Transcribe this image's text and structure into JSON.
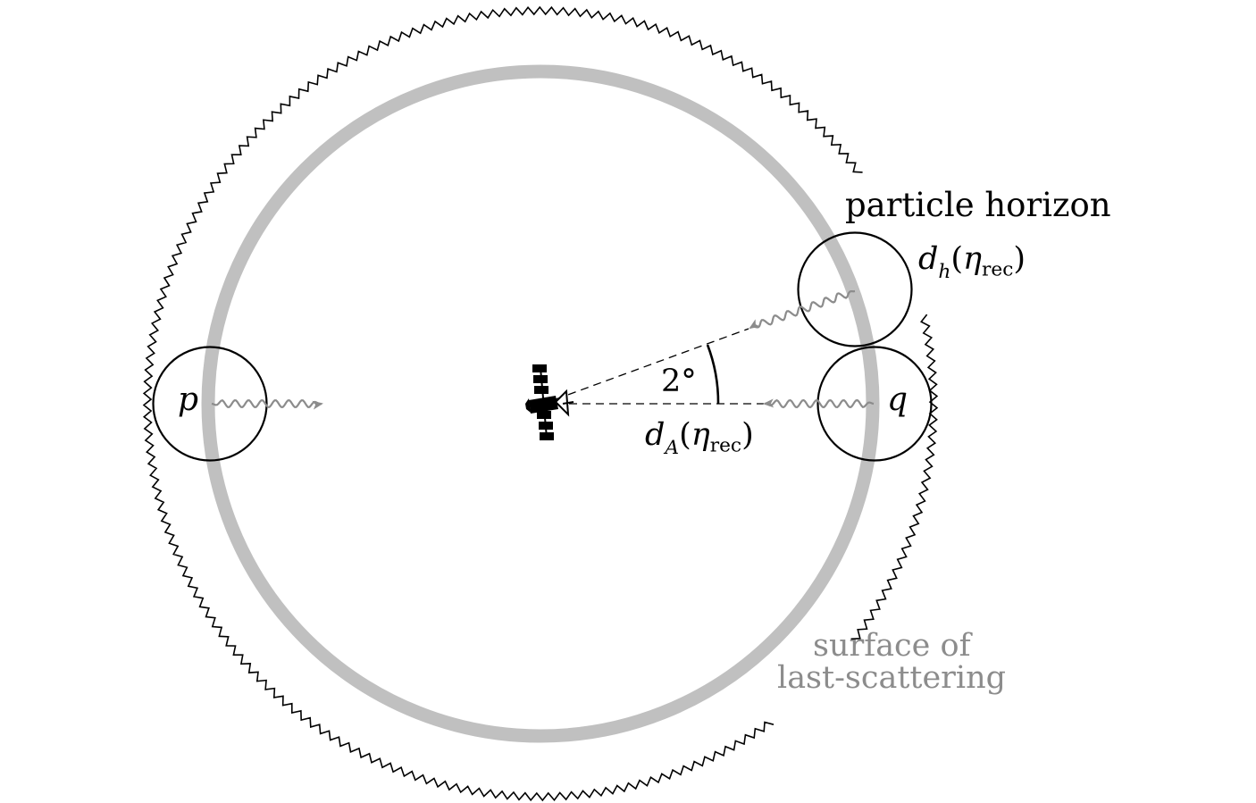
{
  "labels": {
    "particle_horizon": "particle horizon",
    "horizon_distance": {
      "d": "d",
      "d_sub": "h",
      "open": "(",
      "eta": "η",
      "eta_sub": "rec",
      "close": ")"
    },
    "angular_distance": {
      "d": "d",
      "d_sub": "A",
      "open": "(",
      "eta": "η",
      "eta_sub": "rec",
      "close": ")"
    },
    "angle": "2°",
    "point_p": "p",
    "point_q": "q",
    "surface_line1": "surface of",
    "surface_line2": "last-scattering"
  },
  "colors": {
    "background": "#ffffff",
    "ink": "#000000",
    "last_scattering_ring": "#c0c0c0",
    "photon": "#8c8c8c",
    "surface_label": "#8c8c8c"
  },
  "icons": {
    "observer": "satellite-icon"
  }
}
